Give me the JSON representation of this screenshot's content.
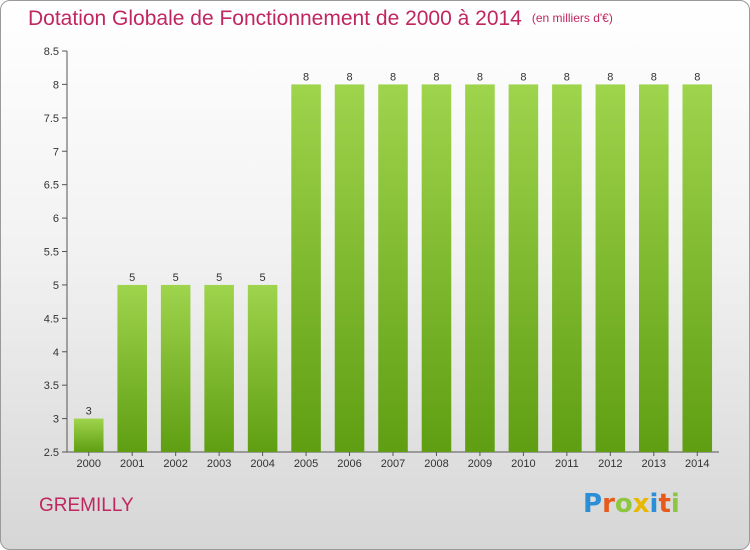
{
  "header": {
    "title": "Dotation Globale de Fonctionnement de 2000 à 2014",
    "subtitle": "(en milliers d'€)"
  },
  "footer": {
    "commune": "GREMILLY",
    "logo_letters": [
      "P",
      "r",
      "o",
      "x",
      "i",
      "t",
      "i"
    ],
    "logo_colors": [
      "#2b8fd8",
      "#e85a1c",
      "#8dc63f",
      "#e8b800",
      "#2b8fd8",
      "#e85a1c",
      "#8dc63f"
    ]
  },
  "colors": {
    "title": "#c0265f",
    "bar_top": "#9fd44d",
    "bar_bottom": "#5f9e12",
    "axis": "#555555"
  },
  "chart_data": {
    "type": "bar",
    "categories": [
      "2000",
      "2001",
      "2002",
      "2003",
      "2004",
      "2005",
      "2006",
      "2007",
      "2008",
      "2009",
      "2010",
      "2011",
      "2012",
      "2013",
      "2014"
    ],
    "values": [
      3,
      5,
      5,
      5,
      5,
      8,
      8,
      8,
      8,
      8,
      8,
      8,
      8,
      8,
      8
    ],
    "data_labels": [
      "3",
      "5",
      "5",
      "5",
      "5",
      "8",
      "8",
      "8",
      "8",
      "8",
      "8",
      "8",
      "8",
      "8",
      "8"
    ],
    "ylim": [
      2.5,
      8.5
    ],
    "yticks": [
      2.5,
      3,
      3.5,
      4,
      4.5,
      5,
      5.5,
      6,
      6.5,
      7,
      7.5,
      8,
      8.5
    ],
    "ytick_labels": [
      "2.5",
      "3",
      "3.5",
      "4",
      "4.5",
      "5",
      "5.5",
      "6",
      "6.5",
      "7",
      "7.5",
      "8",
      "8.5"
    ],
    "title": "Dotation Globale de Fonctionnement de 2000 à 2014",
    "xlabel": "",
    "ylabel": "",
    "grid": false,
    "legend": false
  }
}
